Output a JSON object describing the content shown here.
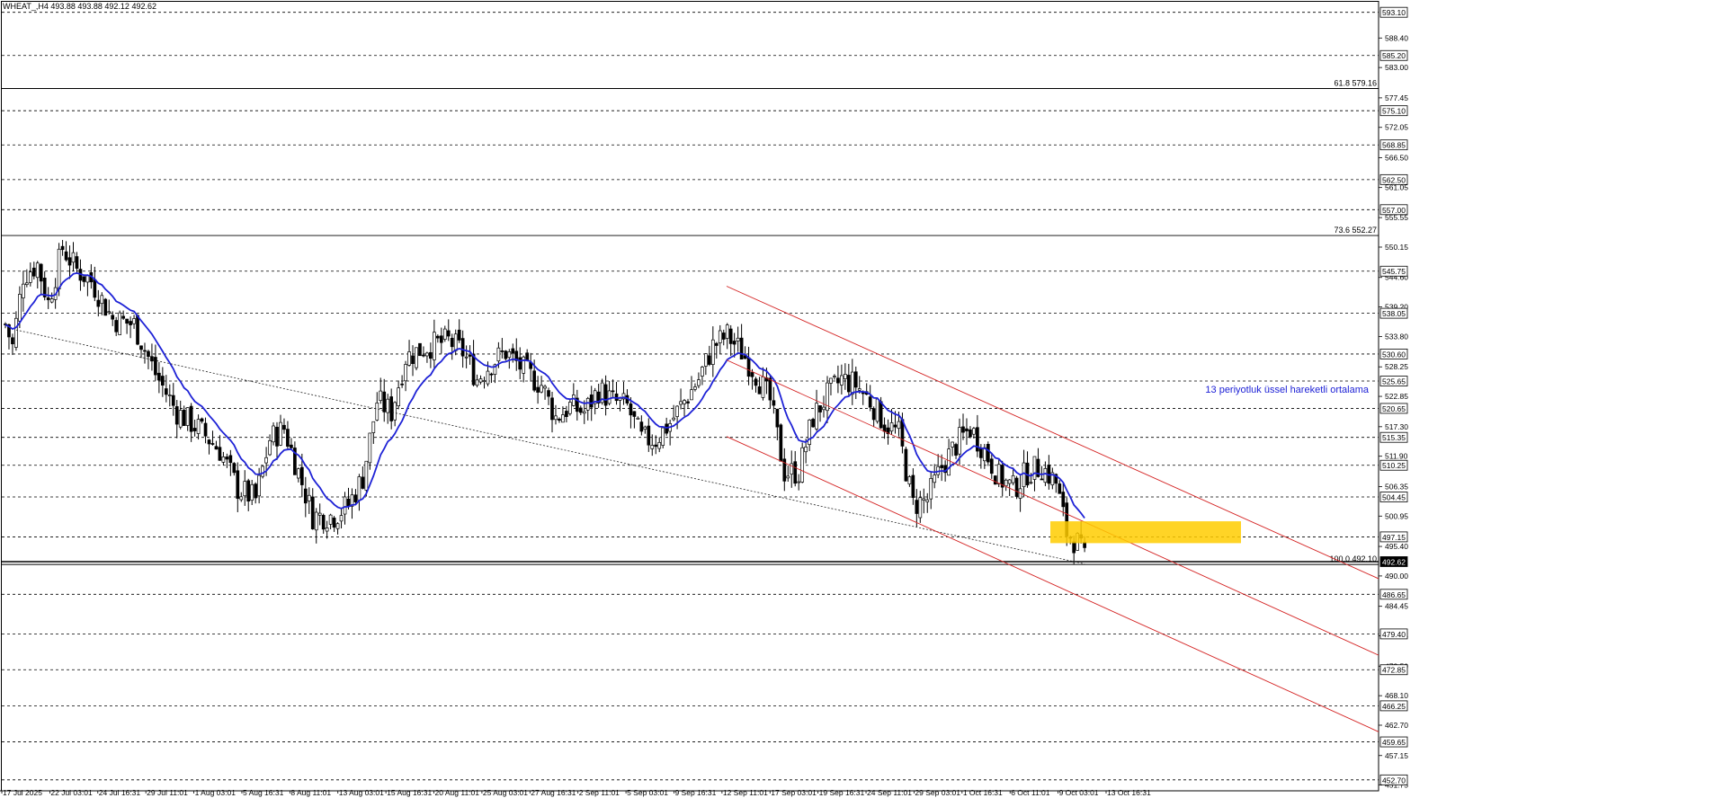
{
  "header": {
    "symbol": "WHEAT_,H4",
    "ohlc": "493.88 493.88 492.12 492.62"
  },
  "chart_data": {
    "type": "candlestick",
    "ylim": [
      450.7,
      595.35
    ],
    "price_ticks": [
      "588.40",
      "583.00",
      "577.45",
      "572.05",
      "566.50",
      "561.05",
      "555.55",
      "550.15",
      "544.60",
      "539.20",
      "533.80",
      "528.25",
      "522.85",
      "517.30",
      "511.90",
      "506.35",
      "500.95",
      "495.40",
      "490.00",
      "484.45",
      "479.05",
      "473.50",
      "468.10",
      "462.70",
      "457.15",
      "451.75"
    ],
    "level_lines": [
      {
        "value": 593.1,
        "label": "593.10",
        "style": "dash"
      },
      {
        "value": 585.2,
        "label": "585.20",
        "style": "dash"
      },
      {
        "value": 575.1,
        "label": "575.10",
        "style": "dash"
      },
      {
        "value": 568.85,
        "label": "568.85",
        "style": "dash"
      },
      {
        "value": 562.5,
        "label": "562.50",
        "style": "dash"
      },
      {
        "value": 557.0,
        "label": "557.00",
        "style": "dash"
      },
      {
        "value": 545.75,
        "label": "545.75",
        "style": "dash"
      },
      {
        "value": 538.05,
        "label": "538.05",
        "style": "dash"
      },
      {
        "value": 530.6,
        "label": "530.60",
        "style": "dash"
      },
      {
        "value": 525.65,
        "label": "525.65",
        "style": "dash"
      },
      {
        "value": 520.65,
        "label": "520.65",
        "style": "dash"
      },
      {
        "value": 515.35,
        "label": "515.35",
        "style": "dash"
      },
      {
        "value": 510.25,
        "label": "510.25",
        "style": "dash"
      },
      {
        "value": 504.45,
        "label": "504.45",
        "style": "dash"
      },
      {
        "value": 497.15,
        "label": "497.15",
        "style": "dash"
      },
      {
        "value": 486.65,
        "label": "486.65",
        "style": "dash"
      },
      {
        "value": 479.4,
        "label": "479.40",
        "style": "dash"
      },
      {
        "value": 472.85,
        "label": "472.85",
        "style": "dash"
      },
      {
        "value": 466.25,
        "label": "466.25",
        "style": "dash"
      },
      {
        "value": 459.65,
        "label": "459.65",
        "style": "dash"
      },
      {
        "value": 452.7,
        "label": "452.70",
        "style": "dash"
      }
    ],
    "current_price": {
      "value": 492.62,
      "label": "492.62"
    },
    "fibonacci": [
      {
        "level": "61.8",
        "value": 579.16,
        "label": "61.8 579.16"
      },
      {
        "level": "73.6",
        "value": 552.27,
        "label": "73.6 552.27"
      },
      {
        "level": "100.0",
        "value": 492.1,
        "label": "100.0 492.10"
      }
    ],
    "x_labels": [
      "17 Jul 2025",
      "22 Jul 03:01",
      "24 Jul 16:31",
      "29 Jul 11:01",
      "1 Aug 03:01",
      "5 Aug 16:31",
      "8 Aug 11:01",
      "13 Aug 03:01",
      "15 Aug 16:31",
      "20 Aug 11:01",
      "25 Aug 03:01",
      "27 Aug 16:31",
      "2 Sep 11:01",
      "5 Sep 03:01",
      "9 Sep 16:31",
      "12 Sep 11:01",
      "17 Sep 03:01",
      "19 Sep 16:31",
      "24 Sep 11:01",
      "29 Sep 03:01",
      "1 Oct 16:31",
      "6 Oct 11:01",
      "9 Oct 03:01",
      "13 Oct 16:31"
    ],
    "price_path": [
      {
        "t": 0,
        "p": 536
      },
      {
        "t": 2,
        "p": 532
      },
      {
        "t": 5,
        "p": 545
      },
      {
        "t": 9,
        "p": 547
      },
      {
        "t": 12,
        "p": 540
      },
      {
        "t": 16,
        "p": 550
      },
      {
        "t": 20,
        "p": 546
      },
      {
        "t": 24,
        "p": 544
      },
      {
        "t": 30,
        "p": 537
      },
      {
        "t": 36,
        "p": 536
      },
      {
        "t": 42,
        "p": 527
      },
      {
        "t": 48,
        "p": 520
      },
      {
        "t": 54,
        "p": 517
      },
      {
        "t": 60,
        "p": 513
      },
      {
        "t": 65,
        "p": 506
      },
      {
        "t": 70,
        "p": 504
      },
      {
        "t": 74,
        "p": 515
      },
      {
        "t": 78,
        "p": 517
      },
      {
        "t": 82,
        "p": 509
      },
      {
        "t": 86,
        "p": 501
      },
      {
        "t": 92,
        "p": 501
      },
      {
        "t": 96,
        "p": 503
      },
      {
        "t": 100,
        "p": 508
      },
      {
        "t": 104,
        "p": 522
      },
      {
        "t": 108,
        "p": 520
      },
      {
        "t": 112,
        "p": 530
      },
      {
        "t": 118,
        "p": 532
      },
      {
        "t": 124,
        "p": 533
      },
      {
        "t": 128,
        "p": 531
      },
      {
        "t": 132,
        "p": 526
      },
      {
        "t": 136,
        "p": 529
      },
      {
        "t": 140,
        "p": 531
      },
      {
        "t": 146,
        "p": 527
      },
      {
        "t": 150,
        "p": 525
      },
      {
        "t": 154,
        "p": 519
      },
      {
        "t": 158,
        "p": 521
      },
      {
        "t": 162,
        "p": 520
      },
      {
        "t": 166,
        "p": 524
      },
      {
        "t": 170,
        "p": 522
      },
      {
        "t": 174,
        "p": 521
      },
      {
        "t": 178,
        "p": 515
      },
      {
        "t": 182,
        "p": 515
      },
      {
        "t": 186,
        "p": 518
      },
      {
        "t": 190,
        "p": 522
      },
      {
        "t": 194,
        "p": 526
      },
      {
        "t": 198,
        "p": 532
      },
      {
        "t": 202,
        "p": 534
      },
      {
        "t": 206,
        "p": 531
      },
      {
        "t": 210,
        "p": 527
      },
      {
        "t": 214,
        "p": 522
      },
      {
        "t": 218,
        "p": 509
      },
      {
        "t": 222,
        "p": 509
      },
      {
        "t": 226,
        "p": 519
      },
      {
        "t": 230,
        "p": 523
      },
      {
        "t": 234,
        "p": 526
      },
      {
        "t": 238,
        "p": 525
      },
      {
        "t": 242,
        "p": 522
      },
      {
        "t": 246,
        "p": 518
      },
      {
        "t": 250,
        "p": 516
      },
      {
        "t": 254,
        "p": 503
      },
      {
        "t": 258,
        "p": 504
      },
      {
        "t": 262,
        "p": 510
      },
      {
        "t": 266,
        "p": 514
      },
      {
        "t": 270,
        "p": 517
      },
      {
        "t": 274,
        "p": 513
      },
      {
        "t": 278,
        "p": 508
      },
      {
        "t": 282,
        "p": 506
      },
      {
        "t": 286,
        "p": 509
      },
      {
        "t": 290,
        "p": 510
      },
      {
        "t": 294,
        "p": 507
      },
      {
        "t": 297,
        "p": 498
      },
      {
        "t": 300,
        "p": 496
      },
      {
        "t": 302,
        "p": 493
      }
    ],
    "ema": {
      "period": 13,
      "color": "#1e22d6",
      "label": "13 periyotluk üssel hareketli ortalama"
    },
    "channel": {
      "color": "#d42222",
      "lines": [
        {
          "from": {
            "date": "12 Sep 11:01",
            "p": 543
          },
          "to": {
            "date": "right edge",
            "p": 489.5
          }
        },
        {
          "from": {
            "date": "12 Sep 11:01",
            "p": 529.5
          },
          "to": {
            "date": "right edge",
            "p": 475.5
          }
        },
        {
          "from": {
            "date": "12 Sep 11:01",
            "p": 515.5
          },
          "to": {
            "date": "right edge",
            "p": 461.5
          }
        }
      ]
    },
    "trendline": {
      "color": "#222222",
      "style": "dotted"
    },
    "highlight_zone": {
      "p_top": 500.0,
      "p_bottom": 496.0,
      "color": "#ffcc00"
    },
    "colors": {
      "bull": "#ffffff",
      "bear": "#000000",
      "grid": "#000000"
    }
  }
}
